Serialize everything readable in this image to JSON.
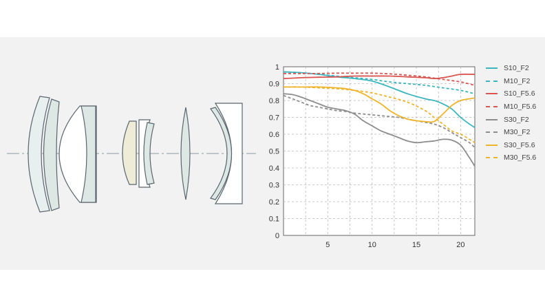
{
  "chart_data": {
    "type": "line",
    "title": "",
    "xlabel": "",
    "ylabel": "",
    "xlim": [
      0,
      21.6
    ],
    "ylim": [
      0,
      1
    ],
    "x_ticks": [
      5,
      10,
      15,
      20
    ],
    "x_tick_labels": [
      "5",
      "10",
      "15",
      "20"
    ],
    "y_ticks": [
      1,
      0.9,
      0.8,
      0.7,
      0.6,
      0.5,
      0.4,
      0.3,
      0.2,
      0.1,
      0
    ],
    "y_tick_labels": [
      "1",
      "0.9",
      "0.8",
      "0.7",
      "0.6",
      "0.5",
      "0.4",
      "0.3",
      "0.2",
      "0.1",
      "0"
    ],
    "grid": true,
    "legend_position": "right",
    "series": [
      {
        "name": "S10_F2",
        "color": "#3ab4be",
        "dash": "solid",
        "x": [
          0,
          2,
          4,
          6,
          8,
          10,
          12,
          14,
          16,
          17,
          18,
          19,
          20,
          21,
          21.6
        ],
        "y": [
          0.97,
          0.965,
          0.955,
          0.94,
          0.93,
          0.915,
          0.88,
          0.84,
          0.81,
          0.8,
          0.78,
          0.75,
          0.7,
          0.66,
          0.64
        ]
      },
      {
        "name": "M10_F2",
        "color": "#3ab4be",
        "dash": "dashed",
        "x": [
          0,
          2,
          4,
          6,
          8,
          10,
          12,
          14,
          16,
          18,
          20,
          21.6
        ],
        "y": [
          0.97,
          0.965,
          0.955,
          0.945,
          0.935,
          0.925,
          0.91,
          0.9,
          0.89,
          0.875,
          0.86,
          0.84
        ]
      },
      {
        "name": "S10_F5.6",
        "color": "#d9534f",
        "dash": "solid",
        "x": [
          0,
          2,
          4,
          6,
          8,
          10,
          12,
          14,
          16,
          17,
          18,
          19,
          20,
          21.6
        ],
        "y": [
          0.93,
          0.935,
          0.938,
          0.94,
          0.945,
          0.945,
          0.945,
          0.94,
          0.935,
          0.93,
          0.935,
          0.945,
          0.955,
          0.955
        ]
      },
      {
        "name": "M10_F5.6",
        "color": "#d9534f",
        "dash": "dashed",
        "x": [
          0,
          2,
          4,
          6,
          8,
          10,
          12,
          14,
          16,
          18,
          20,
          21.6
        ],
        "y": [
          0.96,
          0.96,
          0.96,
          0.962,
          0.962,
          0.962,
          0.958,
          0.95,
          0.94,
          0.925,
          0.91,
          0.89
        ]
      },
      {
        "name": "S30_F2",
        "color": "#8c8c8c",
        "dash": "solid",
        "x": [
          0,
          1,
          2,
          3,
          4,
          5,
          6,
          7,
          8,
          9,
          10,
          11,
          12,
          13,
          14,
          15,
          16,
          17,
          18,
          19,
          20,
          21,
          21.6
        ],
        "y": [
          0.84,
          0.835,
          0.82,
          0.8,
          0.78,
          0.76,
          0.75,
          0.74,
          0.72,
          0.68,
          0.65,
          0.62,
          0.6,
          0.58,
          0.56,
          0.55,
          0.555,
          0.56,
          0.57,
          0.565,
          0.535,
          0.46,
          0.41
        ]
      },
      {
        "name": "M30_F2",
        "color": "#8c8c8c",
        "dash": "dashed",
        "x": [
          0,
          1,
          2,
          3,
          4,
          5,
          6,
          7,
          8,
          9,
          10,
          11,
          12,
          13,
          14,
          15,
          16,
          17,
          18,
          19,
          20,
          21,
          21.6
        ],
        "y": [
          0.83,
          0.81,
          0.79,
          0.77,
          0.76,
          0.75,
          0.74,
          0.735,
          0.725,
          0.72,
          0.715,
          0.71,
          0.705,
          0.7,
          0.69,
          0.68,
          0.67,
          0.66,
          0.64,
          0.61,
          0.58,
          0.55,
          0.52
        ]
      },
      {
        "name": "S30_F5.6",
        "color": "#f0b429",
        "dash": "solid",
        "x": [
          0,
          2,
          4,
          6,
          7,
          8,
          9,
          10,
          11,
          12,
          13,
          14,
          15,
          16,
          17,
          18,
          19,
          20,
          21,
          21.6
        ],
        "y": [
          0.88,
          0.88,
          0.88,
          0.875,
          0.87,
          0.86,
          0.84,
          0.81,
          0.78,
          0.74,
          0.71,
          0.69,
          0.68,
          0.675,
          0.675,
          0.72,
          0.77,
          0.8,
          0.81,
          0.815
        ]
      },
      {
        "name": "M30_F5.6",
        "color": "#f0b429",
        "dash": "dashed",
        "x": [
          0,
          2,
          4,
          6,
          8,
          10,
          12,
          14,
          16,
          17,
          18,
          19,
          20,
          21,
          21.6
        ],
        "y": [
          0.88,
          0.88,
          0.875,
          0.87,
          0.86,
          0.845,
          0.82,
          0.79,
          0.74,
          0.7,
          0.66,
          0.62,
          0.6,
          0.57,
          0.55
        ]
      }
    ]
  }
}
